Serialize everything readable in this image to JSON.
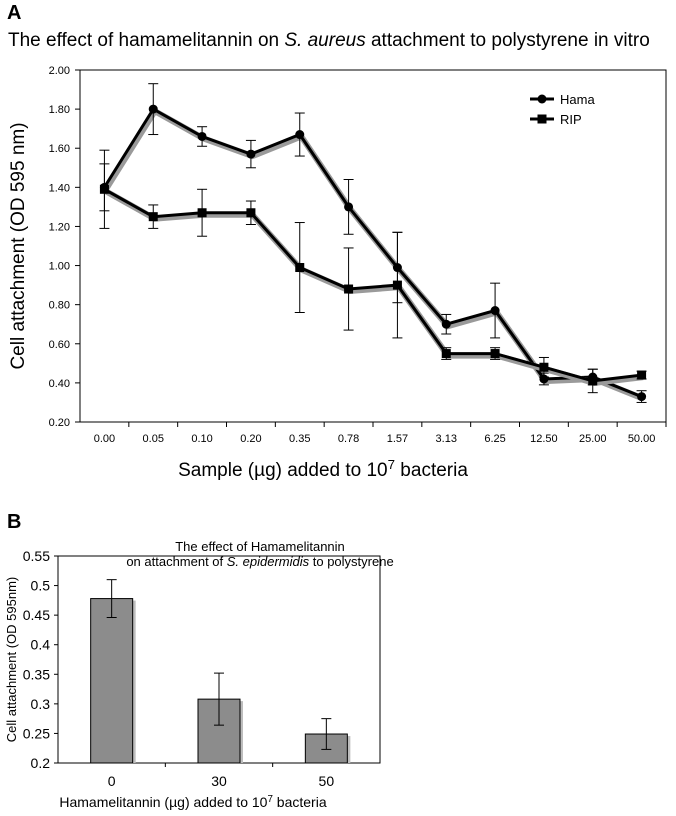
{
  "panel_a": {
    "letter": "A",
    "title_parts": [
      "The effect of hamamelitannin on ",
      "S. aureus",
      " attachment to polystyrene in vitro"
    ]
  },
  "panel_b": {
    "letter": "B",
    "title_line1": "The effect of Hamamelitannin",
    "title_line2_parts": [
      "on attachment of ",
      "S. epidermidis",
      " to polystyrene"
    ]
  },
  "chart_data": [
    {
      "type": "line",
      "title": "The effect of hamamelitannin on S. aureus attachment to polystyrene in vitro",
      "xlabel": "Sample (µg) added to 10⁷ bacteria",
      "ylabel": "Cell attachment (OD 595 nm)",
      "ylim": [
        0.2,
        2.0
      ],
      "yticks": [
        "0.20",
        "0.40",
        "0.60",
        "0.80",
        "1.00",
        "1.20",
        "1.40",
        "1.60",
        "1.80",
        "2.00"
      ],
      "categories": [
        "0.00",
        "0.05",
        "0.10",
        "0.20",
        "0.35",
        "0.78",
        "1.57",
        "3.13",
        "6.25",
        "12.50",
        "25.00",
        "50.00"
      ],
      "legend_position": "top-right",
      "grid": false,
      "series": [
        {
          "name": "Hama",
          "marker": "circle",
          "values": [
            1.4,
            1.8,
            1.66,
            1.57,
            1.67,
            1.3,
            0.99,
            0.7,
            0.77,
            0.42,
            0.43,
            0.33
          ],
          "errors": [
            0.12,
            0.13,
            0.05,
            0.07,
            0.11,
            0.14,
            0.18,
            0.05,
            0.14,
            0.03,
            0.04,
            0.03
          ]
        },
        {
          "name": "RIP",
          "marker": "square",
          "values": [
            1.39,
            1.25,
            1.27,
            1.27,
            0.99,
            0.88,
            0.9,
            0.55,
            0.55,
            0.48,
            0.41,
            0.44
          ],
          "errors": [
            0.2,
            0.06,
            0.12,
            0.06,
            0.23,
            0.21,
            0.27,
            0.03,
            0.03,
            0.05,
            0.06,
            0.02
          ]
        }
      ]
    },
    {
      "type": "bar",
      "title": "The effect of Hamamelitannin on attachment of S. epidermidis to polystyrene",
      "xlabel": "Hamamelitannin (µg) added to 10⁷ bacteria",
      "ylabel": "Cell attachment (OD 595nm)",
      "ylim": [
        0.2,
        0.55
      ],
      "yticks": [
        "0.2",
        "0.25",
        "0.3",
        "0.35",
        "0.4",
        "0.45",
        "0.5",
        "0.55"
      ],
      "categories": [
        "0",
        "30",
        "50"
      ],
      "values": [
        0.478,
        0.308,
        0.249
      ],
      "errors": [
        0.032,
        0.044,
        0.026
      ],
      "bar_color": "#8c8c8c",
      "grid": false
    }
  ]
}
